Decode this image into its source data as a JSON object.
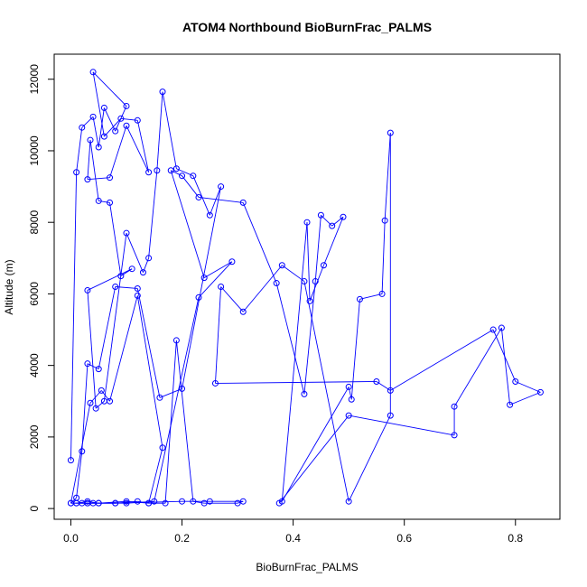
{
  "chart_data": {
    "type": "scatter",
    "title": "ATOM4 Northbound BioBurnFrac_PALMS",
    "xlabel": "BioBurnFrac_PALMS",
    "ylabel": "Altitude (m)",
    "xlim": [
      -0.03,
      0.88
    ],
    "ylim": [
      -300,
      12700
    ],
    "x_ticks": [
      0.0,
      0.2,
      0.4,
      0.6,
      0.8
    ],
    "x_tick_labels": [
      "0.0",
      "0.2",
      "0.4",
      "0.6",
      "0.8"
    ],
    "y_ticks": [
      0,
      2000,
      4000,
      6000,
      8000,
      10000,
      12000
    ],
    "y_tick_labels": [
      "0",
      "2000",
      "4000",
      "6000",
      "8000",
      "10000",
      "12000"
    ],
    "grid": false,
    "connect_points": true,
    "series_color": "#0000ff",
    "marker": "open-circle",
    "series": [
      {
        "x": [
          0.0,
          0.01,
          0.02,
          0.04,
          0.05,
          0.06,
          0.08,
          0.1,
          0.04,
          0.06,
          0.09,
          0.12,
          0.14,
          0.1,
          0.07,
          0.03,
          0.035,
          0.05,
          0.07,
          0.09,
          0.11,
          0.03,
          0.045,
          0.06,
          0.1,
          0.13,
          0.14,
          0.155,
          0.165,
          0.19,
          0.22,
          0.25,
          0.27,
          0.2,
          0.16,
          0.12,
          0.08,
          0.05,
          0.03,
          0.02,
          0.01,
          0.0,
          0.035,
          0.055,
          0.07,
          0.12,
          0.165,
          0.14,
          0.1,
          0.05,
          0.03,
          0.01,
          0.0,
          0.03,
          0.08,
          0.2,
          0.25,
          0.31,
          0.3,
          0.24,
          0.22,
          0.19,
          0.17,
          0.14,
          0.12,
          0.08,
          0.04,
          0.02,
          0.01,
          0.03,
          0.05,
          0.1,
          0.15,
          0.23,
          0.29,
          0.24,
          0.18,
          0.2,
          0.23,
          0.31,
          0.37,
          0.42,
          0.44,
          0.45,
          0.47,
          0.49,
          0.455,
          0.43,
          0.425,
          0.38,
          0.5,
          0.505,
          0.52,
          0.56,
          0.565,
          0.575,
          0.575,
          0.5,
          0.42,
          0.38,
          0.31,
          0.27,
          0.26,
          0.55,
          0.575,
          0.76,
          0.8,
          0.845,
          0.79,
          0.775,
          0.69,
          0.69,
          0.5,
          0.375
        ],
        "y": [
          1350,
          9400,
          10650,
          10950,
          10100,
          11200,
          10550,
          11250,
          12200,
          10400,
          10900,
          10850,
          9400,
          10700,
          9250,
          9200,
          10300,
          8600,
          8550,
          6500,
          6700,
          6100,
          2800,
          3000,
          7700,
          6600,
          7000,
          9450,
          11650,
          9500,
          9300,
          8200,
          9000,
          3350,
          3100,
          6150,
          6200,
          3900,
          4050,
          1600,
          300,
          150,
          2950,
          3300,
          3000,
          5950,
          1700,
          150,
          200,
          150,
          200,
          150,
          150,
          150,
          150,
          200,
          200,
          200,
          150,
          150,
          200,
          4700,
          150,
          150,
          200,
          150,
          150,
          150,
          150,
          150,
          150,
          150,
          200,
          5900,
          6900,
          6450,
          9450,
          9300,
          8700,
          8550,
          6300,
          3200,
          6350,
          8200,
          7900,
          8150,
          6800,
          5800,
          8000,
          200,
          3400,
          3050,
          5850,
          6000,
          8050,
          10500,
          2600,
          200,
          6350,
          6800,
          5500,
          6200,
          3500,
          3550,
          3300,
          5000,
          3550,
          3250,
          2900,
          5050,
          2850,
          2050,
          2600,
          150
        ]
      }
    ]
  }
}
